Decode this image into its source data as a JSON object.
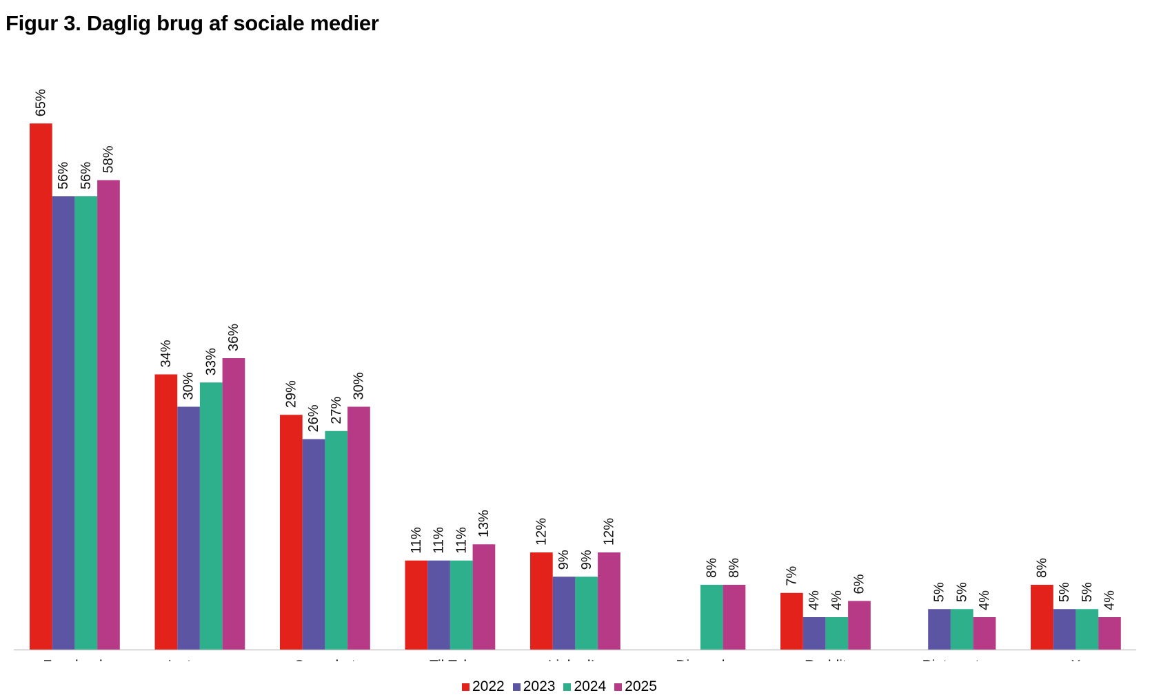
{
  "title": "Figur 3. Daglig brug af sociale medier",
  "chart_data": {
    "type": "bar",
    "title": "Figur 3. Daglig brug af sociale medier",
    "xlabel": "",
    "ylabel": "",
    "ylim": [
      0,
      70
    ],
    "grid": false,
    "legend_position": "bottom",
    "categories": [
      "Facebook",
      "Instagram",
      "Snapchat",
      "TikTok",
      "LinkedIn",
      "Discord",
      "Reddit",
      "Pinterest",
      "X"
    ],
    "series": [
      {
        "name": "2022",
        "color": "#e3221b",
        "values": [
          65,
          34,
          29,
          11,
          12,
          null,
          7,
          null,
          8
        ]
      },
      {
        "name": "2023",
        "color": "#5b55a3",
        "values": [
          56,
          30,
          26,
          11,
          9,
          null,
          4,
          5,
          5
        ]
      },
      {
        "name": "2024",
        "color": "#2fb08c",
        "values": [
          56,
          33,
          27,
          11,
          9,
          8,
          4,
          5,
          5
        ]
      },
      {
        "name": "2025",
        "color": "#b63a86",
        "values": [
          58,
          36,
          30,
          13,
          12,
          8,
          6,
          4,
          4
        ]
      }
    ],
    "value_suffix": "%"
  }
}
